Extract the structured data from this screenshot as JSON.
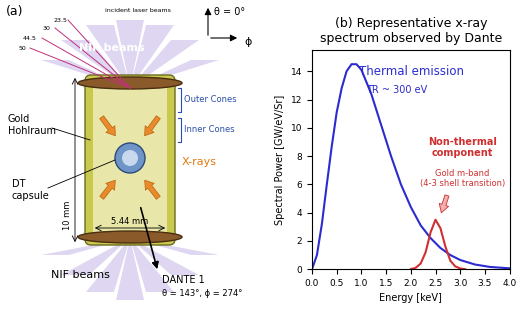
{
  "diagram": {
    "panel_label": "(a)",
    "beam_angles": [
      "50",
      "44.5",
      "30",
      "23.5"
    ],
    "beam_angles_title": "incident laser beams",
    "theta_axis": "θ = 0°",
    "phi_axis": "ϕ",
    "beams_top": "NIF beams",
    "beams_bottom": "NIF beams",
    "hohlraum": "Gold\nHohlraum",
    "outer_cones": "Outer Cones",
    "inner_cones": "Inner Cones",
    "xrays": "X-rays",
    "capsule": "DT\ncapsule",
    "height": "10 mm",
    "width": "5.44 mm",
    "detector": "DANTE 1",
    "detector_angles": "θ = 143°, ϕ = 274°"
  },
  "chart_data": {
    "type": "line",
    "title": "(b) Representative x-ray\nspectrum observed by Dante",
    "x_label": "Energy [keV]",
    "y_label": "Spectral Power [GW/eV/Sr]",
    "xlim": [
      0.0,
      4.0
    ],
    "xticks": [
      0.0,
      0.5,
      1.0,
      1.5,
      2.0,
      2.5,
      3.0,
      3.5,
      4.0
    ],
    "ylim": [
      0,
      15.5
    ],
    "yticks": [
      0,
      2,
      4,
      6,
      8,
      10,
      12,
      14
    ],
    "grid": false,
    "series": [
      {
        "name": "Thermal emission",
        "color": "#2b2bd0",
        "x": [
          0.0,
          0.1,
          0.2,
          0.3,
          0.4,
          0.5,
          0.6,
          0.7,
          0.8,
          0.9,
          1.0,
          1.2,
          1.4,
          1.6,
          1.8,
          2.0,
          2.2,
          2.4,
          2.6,
          2.8,
          3.0,
          3.3,
          3.6,
          4.0
        ],
        "values": [
          0.0,
          1.0,
          3.2,
          6.0,
          8.7,
          11.1,
          12.8,
          14.0,
          14.5,
          14.5,
          14.1,
          12.4,
          10.2,
          8.0,
          6.0,
          4.4,
          3.1,
          2.2,
          1.5,
          1.0,
          0.65,
          0.33,
          0.16,
          0.06
        ]
      },
      {
        "name": "Non-thermal\ncomponent",
        "color": "#d03030",
        "x": [
          2.0,
          2.1,
          2.2,
          2.3,
          2.4,
          2.5,
          2.6,
          2.7,
          2.8,
          2.9,
          3.0,
          3.1
        ],
        "values": [
          0.0,
          0.1,
          0.4,
          1.2,
          2.6,
          3.5,
          2.9,
          1.6,
          0.6,
          0.2,
          0.05,
          0.0
        ]
      }
    ],
    "annotations": [
      {
        "text": "TR ~ 300 eV",
        "color": "#2b2bd0"
      },
      {
        "text": "Gold m-band\n(4-3 shell transition)",
        "color": "#d03030"
      }
    ]
  }
}
